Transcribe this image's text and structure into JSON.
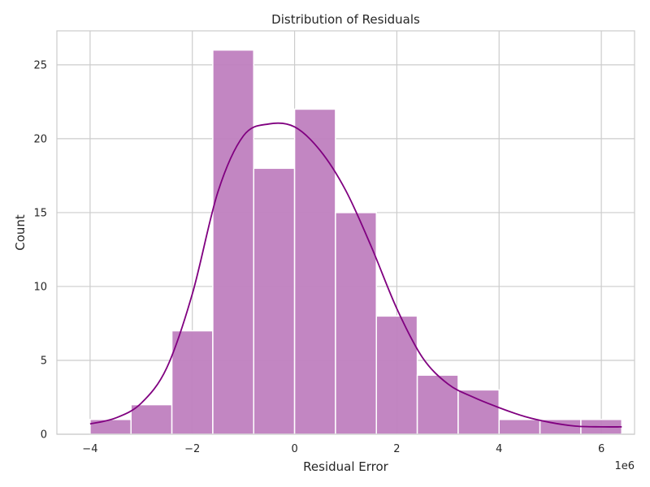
{
  "chart_data": {
    "type": "bar",
    "title": "Distribution of Residuals",
    "xlabel": "Residual Error",
    "ylabel": "Count",
    "x_offset_label": "1e6",
    "xlim": [
      -4.65,
      6.65
    ],
    "ylim": [
      0,
      27.3
    ],
    "x_ticks": [
      -4,
      -2,
      0,
      2,
      4,
      6
    ],
    "x_tick_labels": [
      "−4",
      "−2",
      "0",
      "2",
      "4",
      "6"
    ],
    "y_ticks": [
      0,
      5,
      10,
      15,
      20,
      25
    ],
    "y_tick_labels": [
      "0",
      "5",
      "10",
      "15",
      "20",
      "25"
    ],
    "grid": true,
    "bin_edges": [
      -4.0,
      -3.2,
      -2.4,
      -1.6,
      -0.8,
      0.0,
      0.8,
      1.6,
      2.4,
      3.2,
      4.0,
      4.8,
      5.6,
      6.4
    ],
    "counts": [
      1,
      2,
      7,
      26,
      18,
      22,
      15,
      8,
      4,
      3,
      1,
      1,
      1
    ],
    "kde": {
      "x": [
        -4.0,
        -3.5,
        -3.0,
        -2.5,
        -2.0,
        -1.5,
        -1.0,
        -0.5,
        0.0,
        0.5,
        1.0,
        1.5,
        2.0,
        2.5,
        3.0,
        3.5,
        4.0,
        4.5,
        5.0,
        5.5,
        6.0,
        6.4
      ],
      "y": [
        0.7,
        1.1,
        2.1,
        4.5,
        9.5,
        16.4,
        20.2,
        21.0,
        20.8,
        19.2,
        16.5,
        12.7,
        8.5,
        5.2,
        3.4,
        2.5,
        1.8,
        1.2,
        0.8,
        0.55,
        0.5,
        0.5
      ]
    },
    "colors": {
      "bar_fill": "#bf80bf",
      "bar_stroke": "#ffffff",
      "kde_line": "#800080",
      "grid": "#cccccc",
      "spine": "#cccccc",
      "text": "#262626"
    }
  }
}
